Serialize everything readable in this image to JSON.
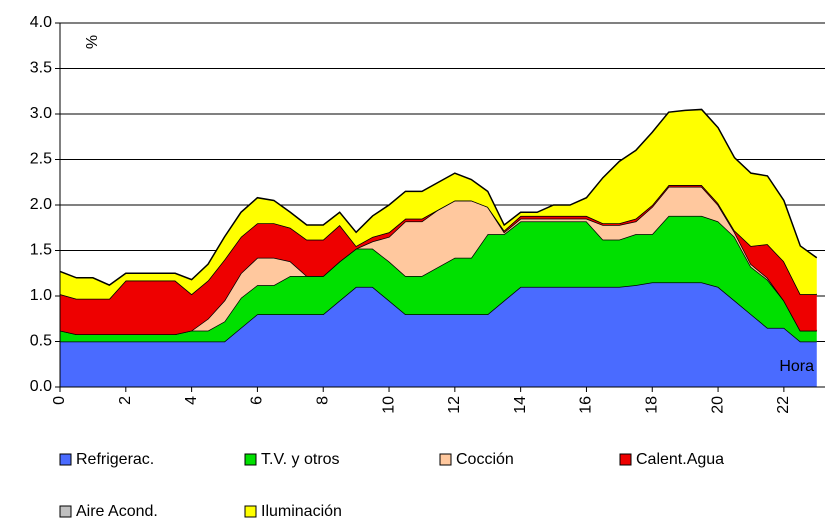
{
  "chart_data": {
    "type": "stacked_area",
    "annotations": {
      "y_unit": "%",
      "x_label": "Hora"
    },
    "x": [
      0,
      0.5,
      1,
      1.5,
      2,
      2.5,
      3,
      3.5,
      4,
      4.5,
      5,
      5.5,
      6,
      6.5,
      7,
      7.5,
      8,
      8.5,
      9,
      9.5,
      10,
      10.5,
      11,
      11.5,
      12,
      12.5,
      13,
      13.5,
      14,
      14.5,
      15,
      15.5,
      16,
      16.5,
      17,
      17.5,
      18,
      18.5,
      19,
      19.5,
      20,
      20.5,
      21,
      21.5,
      22,
      22.5,
      23
    ],
    "series": [
      {
        "name": "Refrigerac.",
        "color": "#4a6bff",
        "values": [
          0.5,
          0.5,
          0.5,
          0.5,
          0.5,
          0.5,
          0.5,
          0.5,
          0.5,
          0.5,
          0.5,
          0.65,
          0.8,
          0.8,
          0.8,
          0.8,
          0.8,
          0.95,
          1.1,
          1.1,
          0.95,
          0.8,
          0.8,
          0.8,
          0.8,
          0.8,
          0.8,
          0.95,
          1.1,
          1.1,
          1.1,
          1.1,
          1.1,
          1.1,
          1.1,
          1.12,
          1.15,
          1.15,
          1.15,
          1.15,
          1.1,
          0.95,
          0.8,
          0.65,
          0.65,
          0.5,
          0.5
        ]
      },
      {
        "name": "T.V. y otros",
        "color": "#00e000",
        "values": [
          0.12,
          0.08,
          0.08,
          0.08,
          0.08,
          0.08,
          0.08,
          0.08,
          0.12,
          0.12,
          0.22,
          0.33,
          0.32,
          0.32,
          0.42,
          0.42,
          0.42,
          0.43,
          0.42,
          0.42,
          0.43,
          0.42,
          0.42,
          0.52,
          0.62,
          0.62,
          0.88,
          0.73,
          0.72,
          0.72,
          0.72,
          0.72,
          0.72,
          0.52,
          0.52,
          0.56,
          0.53,
          0.73,
          0.73,
          0.73,
          0.72,
          0.7,
          0.52,
          0.53,
          0.3,
          0.12,
          0.12
        ]
      },
      {
        "name": "Cocción",
        "color": "#ffc89e",
        "values": [
          0,
          0,
          0,
          0,
          0,
          0,
          0,
          0,
          0,
          0.13,
          0.23,
          0.27,
          0.3,
          0.3,
          0.16,
          0,
          0,
          0,
          0,
          0.08,
          0.27,
          0.6,
          0.6,
          0.63,
          0.63,
          0.63,
          0.3,
          0.02,
          0.03,
          0.03,
          0.03,
          0.03,
          0.03,
          0.16,
          0.16,
          0.14,
          0.3,
          0.32,
          0.32,
          0.32,
          0.18,
          0.05,
          0.03,
          0.02,
          0,
          0,
          0
        ]
      },
      {
        "name": "Calent.Agua",
        "color": "#ee0000",
        "values": [
          0.4,
          0.39,
          0.39,
          0.39,
          0.59,
          0.59,
          0.59,
          0.59,
          0.4,
          0.42,
          0.45,
          0.4,
          0.38,
          0.38,
          0.37,
          0.4,
          0.4,
          0.4,
          0.03,
          0.05,
          0.05,
          0.03,
          0.03,
          0,
          0,
          0,
          0,
          0.02,
          0.03,
          0.03,
          0.03,
          0.03,
          0.03,
          0.02,
          0.02,
          0.03,
          0.02,
          0.02,
          0.02,
          0.02,
          0.02,
          0.02,
          0.2,
          0.37,
          0.43,
          0.4,
          0.4
        ]
      },
      {
        "name": "Aire Acond.",
        "color": "#c0c0c0",
        "values": [
          0,
          0,
          0,
          0,
          0,
          0,
          0,
          0,
          0,
          0,
          0,
          0,
          0,
          0,
          0,
          0,
          0,
          0,
          0,
          0,
          0,
          0,
          0,
          0,
          0,
          0,
          0,
          0,
          0,
          0,
          0,
          0,
          0,
          0,
          0,
          0,
          0,
          0,
          0,
          0,
          0,
          0,
          0,
          0,
          0,
          0,
          0
        ]
      },
      {
        "name": "Iluminación",
        "color": "#ffff00",
        "values": [
          0.25,
          0.23,
          0.23,
          0.15,
          0.08,
          0.08,
          0.08,
          0.08,
          0.16,
          0.18,
          0.25,
          0.27,
          0.28,
          0.25,
          0.17,
          0.16,
          0.16,
          0.14,
          0.15,
          0.23,
          0.3,
          0.3,
          0.3,
          0.3,
          0.3,
          0.23,
          0.17,
          0.06,
          0.04,
          0.04,
          0.12,
          0.12,
          0.2,
          0.5,
          0.68,
          0.75,
          0.8,
          0.8,
          0.82,
          0.83,
          0.83,
          0.8,
          0.8,
          0.75,
          0.67,
          0.53,
          0.4
        ]
      }
    ],
    "xlim": [
      0,
      23.25
    ],
    "xticks": [
      0,
      2,
      4,
      6,
      8,
      10,
      12,
      14,
      16,
      18,
      20,
      22
    ],
    "ylim": [
      0,
      4
    ],
    "yticks": [
      {
        "value": 0,
        "label": "0.0"
      },
      {
        "value": 0.5,
        "label": "0.5"
      },
      {
        "value": 1,
        "label": "1.0"
      },
      {
        "value": 1.5,
        "label": "1.5"
      },
      {
        "value": 2,
        "label": "2.0"
      },
      {
        "value": 2.5,
        "label": "2.5"
      },
      {
        "value": 3,
        "label": "3.0"
      },
      {
        "value": 3.5,
        "label": "3.5"
      },
      {
        "value": 4,
        "label": "4.0"
      }
    ],
    "grid": true
  }
}
